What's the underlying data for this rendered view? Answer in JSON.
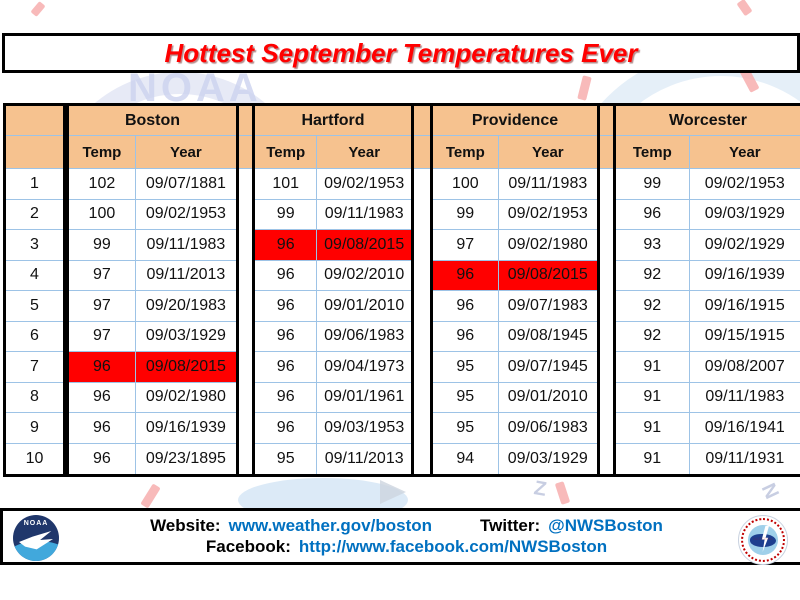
{
  "title": "Hottest September Temperatures Ever",
  "table": {
    "ranks": [
      "1",
      "2",
      "3",
      "4",
      "5",
      "6",
      "7",
      "8",
      "9",
      "10"
    ],
    "col_headers": {
      "temp": "Temp",
      "year": "Year"
    }
  },
  "chart_data": {
    "type": "table",
    "title": "Hottest September Temperatures Ever",
    "columns_per_city": [
      "Temp",
      "Year"
    ],
    "highlight_color": "#ff0000",
    "cities": [
      {
        "name": "Boston",
        "rows": [
          {
            "temp": "102",
            "year": "09/07/1881",
            "highlight": false
          },
          {
            "temp": "100",
            "year": "09/02/1953",
            "highlight": false
          },
          {
            "temp": "99",
            "year": "09/11/1983",
            "highlight": false
          },
          {
            "temp": "97",
            "year": "09/11/2013",
            "highlight": false
          },
          {
            "temp": "97",
            "year": "09/20/1983",
            "highlight": false
          },
          {
            "temp": "97",
            "year": "09/03/1929",
            "highlight": false
          },
          {
            "temp": "96",
            "year": "09/08/2015",
            "highlight": true
          },
          {
            "temp": "96",
            "year": "09/02/1980",
            "highlight": false
          },
          {
            "temp": "96",
            "year": "09/16/1939",
            "highlight": false
          },
          {
            "temp": "96",
            "year": "09/23/1895",
            "highlight": false
          }
        ]
      },
      {
        "name": "Hartford",
        "rows": [
          {
            "temp": "101",
            "year": "09/02/1953",
            "highlight": false
          },
          {
            "temp": "99",
            "year": "09/11/1983",
            "highlight": false
          },
          {
            "temp": "96",
            "year": "09/08/2015",
            "highlight": true
          },
          {
            "temp": "96",
            "year": "09/02/2010",
            "highlight": false
          },
          {
            "temp": "96",
            "year": "09/01/2010",
            "highlight": false
          },
          {
            "temp": "96",
            "year": "09/06/1983",
            "highlight": false
          },
          {
            "temp": "96",
            "year": "09/04/1973",
            "highlight": false
          },
          {
            "temp": "96",
            "year": "09/01/1961",
            "highlight": false
          },
          {
            "temp": "96",
            "year": "09/03/1953",
            "highlight": false
          },
          {
            "temp": "95",
            "year": "09/11/2013",
            "highlight": false
          }
        ]
      },
      {
        "name": "Providence",
        "rows": [
          {
            "temp": "100",
            "year": "09/11/1983",
            "highlight": false
          },
          {
            "temp": "99",
            "year": "09/02/1953",
            "highlight": false
          },
          {
            "temp": "97",
            "year": "09/02/1980",
            "highlight": false
          },
          {
            "temp": "96",
            "year": "09/08/2015",
            "highlight": true
          },
          {
            "temp": "96",
            "year": "09/07/1983",
            "highlight": false
          },
          {
            "temp": "96",
            "year": "09/08/1945",
            "highlight": false
          },
          {
            "temp": "95",
            "year": "09/07/1945",
            "highlight": false
          },
          {
            "temp": "95",
            "year": "09/01/2010",
            "highlight": false
          },
          {
            "temp": "95",
            "year": "09/06/1983",
            "highlight": false
          },
          {
            "temp": "94",
            "year": "09/03/1929",
            "highlight": false
          }
        ]
      },
      {
        "name": "Worcester",
        "rows": [
          {
            "temp": "99",
            "year": "09/02/1953",
            "highlight": false
          },
          {
            "temp": "96",
            "year": "09/03/1929",
            "highlight": false
          },
          {
            "temp": "93",
            "year": "09/02/1929",
            "highlight": false
          },
          {
            "temp": "92",
            "year": "09/16/1939",
            "highlight": false
          },
          {
            "temp": "92",
            "year": "09/16/1915",
            "highlight": false
          },
          {
            "temp": "92",
            "year": "09/15/1915",
            "highlight": false
          },
          {
            "temp": "91",
            "year": "09/08/2007",
            "highlight": false
          },
          {
            "temp": "91",
            "year": "09/11/1983",
            "highlight": false
          },
          {
            "temp": "91",
            "year": "09/16/1941",
            "highlight": false
          },
          {
            "temp": "91",
            "year": "09/11/1931",
            "highlight": false
          }
        ]
      }
    ]
  },
  "footer": {
    "website_label": "Website:",
    "website_url": "www.weather.gov/boston",
    "twitter_label": "Twitter:",
    "twitter_handle": "@NWSBoston",
    "facebook_label": "Facebook:",
    "facebook_url": "http://www.facebook.com/NWSBoston"
  },
  "logos": {
    "noaa_text": "NOAA",
    "nws_ring_text": "NATIONAL WEATHER SERVICE"
  },
  "watermark": {
    "noaa_text": "NOAA"
  },
  "colors": {
    "header_fill": "#f6c28f",
    "grid_line": "#9dc3e6",
    "highlight": "#ff0000",
    "title_red": "#ff0000",
    "link_blue": "#0070c0",
    "noaa_navy": "#20376b",
    "noaa_light_blue": "#41a8dc"
  }
}
